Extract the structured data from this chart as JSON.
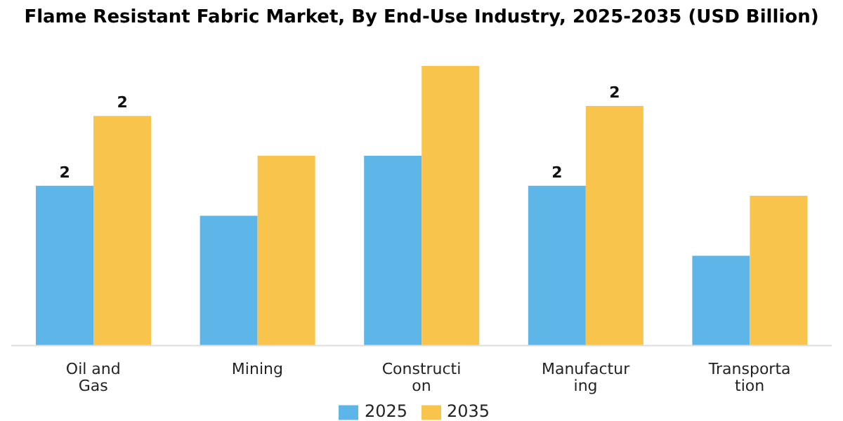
{
  "chart_data": {
    "type": "bar",
    "title": "Flame Resistant Fabric Market, By End-Use Industry, 2025-2035 (USD Billion)",
    "categories": [
      "Oil and Gas",
      "Mining",
      "Construction",
      "Manufacturing",
      "Transportation"
    ],
    "legend": "bottom",
    "grid": false,
    "series": [
      {
        "name": "2025",
        "color": "#5db5e8",
        "values": [
          1.6,
          1.3,
          1.9,
          1.6,
          0.9
        ],
        "value_labels": [
          "2",
          null,
          null,
          "2",
          null
        ]
      },
      {
        "name": "2035",
        "color": "#f9c44b",
        "values": [
          2.3,
          1.9,
          2.8,
          2.4,
          1.5
        ],
        "value_labels": [
          "2",
          null,
          null,
          "2",
          null
        ]
      }
    ]
  }
}
